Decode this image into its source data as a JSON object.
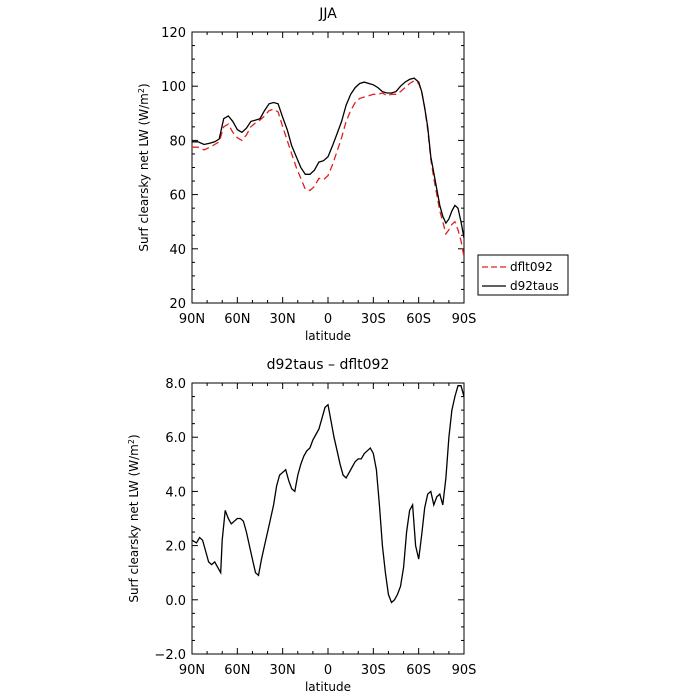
{
  "chart_data": [
    {
      "type": "line",
      "title": "JJA",
      "xlabel": "latitude",
      "ylabel": "Surf clearsky net LW (W/m",
      "ylabel_sup": "2",
      "ylabel_close": ")",
      "xlim": [
        90,
        -90
      ],
      "ylim": [
        20,
        120
      ],
      "xticks": [
        90,
        60,
        30,
        0,
        -30,
        -60,
        -90
      ],
      "xtick_labels": [
        "90N",
        "60N",
        "30N",
        "0",
        "30S",
        "60S",
        "90S"
      ],
      "yticks": [
        20,
        40,
        60,
        80,
        100,
        120
      ],
      "ytick_labels": [
        "20",
        "40",
        "60",
        "80",
        "100",
        "120"
      ],
      "legend_position": "right",
      "series": [
        {
          "name": "dflt092",
          "color": "#e0201b",
          "dash": "dashed",
          "x": [
            90,
            86,
            82,
            78,
            75,
            72,
            69,
            66,
            63,
            60,
            57,
            54,
            51,
            48,
            45,
            42,
            39,
            36,
            33,
            30,
            27,
            24,
            21,
            18,
            15,
            12,
            9,
            6,
            3,
            0,
            -3,
            -6,
            -9,
            -12,
            -15,
            -18,
            -21,
            -24,
            -27,
            -30,
            -33,
            -36,
            -39,
            -42,
            -45,
            -48,
            -51,
            -54,
            -57,
            -60,
            -62,
            -64,
            -66,
            -68,
            -70,
            -72,
            -74,
            -76,
            -78,
            -80,
            -82,
            -84,
            -86,
            -88,
            -90
          ],
          "y": [
            77.5,
            77.5,
            76.5,
            77.5,
            78.5,
            79.5,
            85,
            86,
            83,
            81,
            80,
            82,
            85,
            86.5,
            87.5,
            89,
            91,
            91.5,
            90.5,
            85,
            80,
            75,
            70,
            66,
            62,
            61.5,
            63,
            66,
            65.5,
            67,
            71,
            76,
            81,
            87,
            91,
            94,
            95.5,
            96,
            96.5,
            97,
            97,
            97.5,
            96.5,
            97,
            97,
            98,
            99.5,
            101,
            102,
            101,
            98,
            92,
            84,
            73,
            66,
            60,
            54,
            50,
            45.5,
            47,
            49,
            50,
            47,
            43,
            37
          ]
        },
        {
          "name": "d92taus",
          "color": "#000000",
          "dash": "solid",
          "x": [
            90,
            86,
            82,
            78,
            75,
            72,
            69,
            66,
            63,
            60,
            57,
            54,
            51,
            48,
            45,
            42,
            39,
            36,
            33,
            30,
            27,
            24,
            21,
            18,
            15,
            12,
            9,
            6,
            3,
            0,
            -3,
            -6,
            -9,
            -12,
            -15,
            -18,
            -21,
            -24,
            -27,
            -30,
            -33,
            -36,
            -39,
            -42,
            -45,
            -48,
            -51,
            -54,
            -57,
            -60,
            -62,
            -64,
            -66,
            -68,
            -70,
            -72,
            -74,
            -76,
            -78,
            -80,
            -82,
            -84,
            -86,
            -88,
            -90
          ],
          "y": [
            79.5,
            79.5,
            78.5,
            79,
            79.5,
            80.5,
            88,
            89,
            87,
            84,
            83,
            84.5,
            87,
            87.5,
            88,
            91,
            93.5,
            94,
            93.5,
            88.5,
            84,
            78,
            74,
            70,
            67.5,
            67.5,
            69,
            72,
            72.5,
            74,
            78,
            82.5,
            87,
            93,
            97,
            99.5,
            101,
            101.5,
            101,
            100.5,
            99.5,
            98,
            97.5,
            97.5,
            98,
            100,
            101.5,
            102.5,
            103,
            101.5,
            98,
            92,
            85,
            74,
            68,
            62,
            56,
            52,
            49.5,
            51,
            54,
            56,
            55,
            50,
            44
          ]
        }
      ]
    },
    {
      "type": "line",
      "title": "d92taus – dflt092",
      "xlabel": "latitude",
      "ylabel": "Surf clearsky net LW (W/m",
      "ylabel_sup": "2",
      "ylabel_close": ")",
      "xlim": [
        90,
        -90
      ],
      "ylim": [
        -2,
        8
      ],
      "xticks": [
        90,
        60,
        30,
        0,
        -30,
        -60,
        -90
      ],
      "xtick_labels": [
        "90N",
        "60N",
        "30N",
        "0",
        "30S",
        "60S",
        "90S"
      ],
      "yticks": [
        -2,
        0,
        2,
        4,
        6,
        8
      ],
      "ytick_labels": [
        "−2.0",
        "0.0",
        "2.0",
        "4.0",
        "6.0",
        "8.0"
      ],
      "series": [
        {
          "color": "#000000",
          "dash": "solid",
          "x": [
            90,
            87,
            85,
            83,
            81,
            79,
            77,
            75,
            73,
            71,
            70,
            68,
            66,
            64,
            62,
            60,
            58,
            56,
            54,
            52,
            50,
            48,
            46,
            44,
            42,
            40,
            38,
            36,
            34,
            32,
            30,
            28,
            26,
            24,
            22,
            20,
            18,
            16,
            14,
            12,
            10,
            8,
            6,
            4,
            2,
            0,
            -2,
            -4,
            -6,
            -8,
            -10,
            -12,
            -14,
            -16,
            -18,
            -20,
            -22,
            -24,
            -26,
            -28,
            -30,
            -32,
            -34,
            -36,
            -38,
            -40,
            -42,
            -44,
            -46,
            -48,
            -50,
            -52,
            -54,
            -56,
            -58,
            -60,
            -62,
            -64,
            -66,
            -68,
            -70,
            -72,
            -74,
            -76,
            -78,
            -80,
            -82,
            -84,
            -86,
            -88,
            -90
          ],
          "y": [
            2.2,
            2.1,
            2.3,
            2.2,
            1.8,
            1.4,
            1.3,
            1.4,
            1.2,
            1.0,
            2.2,
            3.3,
            3.0,
            2.8,
            2.9,
            3.0,
            3.0,
            2.9,
            2.5,
            2.0,
            1.5,
            1.0,
            0.9,
            1.5,
            2.0,
            2.5,
            3.0,
            3.5,
            4.2,
            4.6,
            4.7,
            4.8,
            4.4,
            4.1,
            4.0,
            4.6,
            5.0,
            5.3,
            5.5,
            5.6,
            5.9,
            6.1,
            6.3,
            6.7,
            7.1,
            7.2,
            6.6,
            6.0,
            5.5,
            5.0,
            4.6,
            4.5,
            4.7,
            4.9,
            5.1,
            5.2,
            5.2,
            5.4,
            5.5,
            5.6,
            5.4,
            4.8,
            3.5,
            2.0,
            1.0,
            0.2,
            -0.1,
            0.0,
            0.2,
            0.5,
            1.2,
            2.5,
            3.3,
            3.5,
            2.0,
            1.5,
            2.4,
            3.4,
            3.9,
            4.0,
            3.5,
            3.8,
            3.9,
            3.5,
            4.5,
            6.0,
            7.0,
            7.5,
            7.9,
            7.9,
            7.5
          ]
        }
      ]
    }
  ],
  "colors": {
    "axis": "#000000",
    "background": "#ffffff"
  }
}
